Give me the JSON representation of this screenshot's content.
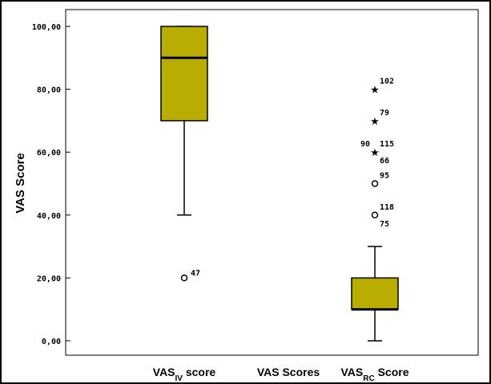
{
  "chart_data": {
    "type": "boxplot",
    "title": "",
    "xlabel": "VAS Scores",
    "ylabel": "VAS Score",
    "ylim": [
      0,
      100
    ],
    "yticks": [
      0,
      20,
      40,
      60,
      80,
      100
    ],
    "ytick_labels": [
      "0,00",
      "20,00",
      "40,00",
      "60,00",
      "80,00",
      "100,00"
    ],
    "box_color": "#b8ad00",
    "grid": false,
    "boxes": [
      {
        "label_main": "VAS",
        "label_sub": "IV",
        "label_suffix": " score",
        "whisker_low": 40,
        "q1": 70,
        "median": 90,
        "q3": 100,
        "whisker_high": 100,
        "outliers": [
          {
            "value": 20,
            "marker": "circle",
            "labels": [
              {
                "text": "47",
                "pos": "right"
              }
            ]
          }
        ]
      },
      {
        "label_main": "VAS",
        "label_sub": "RC",
        "label_suffix": " Score",
        "whisker_low": 0,
        "q1": 10,
        "median": 10,
        "q3": 20,
        "whisker_high": 30,
        "outliers": [
          {
            "value": 40,
            "marker": "circle",
            "labels": [
              {
                "text": "118",
                "pos": "upper-right"
              },
              {
                "text": "75",
                "pos": "lower-right"
              }
            ]
          },
          {
            "value": 50,
            "marker": "circle",
            "labels": [
              {
                "text": "95",
                "pos": "upper-right"
              }
            ]
          },
          {
            "value": 60,
            "marker": "star",
            "labels": [
              {
                "text": "90",
                "pos": "upper-left"
              },
              {
                "text": "115",
                "pos": "upper-right"
              },
              {
                "text": "66",
                "pos": "lower-right"
              }
            ]
          },
          {
            "value": 70,
            "marker": "star",
            "labels": [
              {
                "text": "79",
                "pos": "upper-right"
              }
            ]
          },
          {
            "value": 80,
            "marker": "star",
            "labels": [
              {
                "text": "102",
                "pos": "upper-right"
              }
            ]
          }
        ]
      }
    ]
  }
}
